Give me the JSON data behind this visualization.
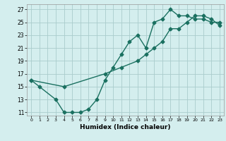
{
  "xlabel": "Humidex (Indice chaleur)",
  "background_color": "#d4eeee",
  "grid_color": "#aacccc",
  "line_color": "#1a7060",
  "xlim": [
    -0.5,
    23.5
  ],
  "ylim": [
    10.5,
    27.8
  ],
  "xticks": [
    0,
    1,
    2,
    3,
    4,
    5,
    6,
    7,
    8,
    9,
    10,
    11,
    12,
    13,
    14,
    15,
    16,
    17,
    18,
    19,
    20,
    21,
    22,
    23
  ],
  "yticks": [
    11,
    13,
    15,
    17,
    19,
    21,
    23,
    25,
    27
  ],
  "line1_x": [
    0,
    1,
    3,
    4,
    5,
    6,
    7,
    8,
    9,
    10,
    11,
    12,
    13,
    14,
    15,
    16,
    17,
    18,
    19,
    20,
    21,
    22,
    23
  ],
  "line1_y": [
    16,
    15,
    13,
    11,
    11,
    11,
    11.5,
    13,
    16,
    18,
    20,
    22,
    23,
    21,
    25,
    25.5,
    27,
    26,
    26,
    25.5,
    25.5,
    25,
    25
  ],
  "line2_x": [
    0,
    4,
    9,
    11,
    13,
    14,
    15,
    16,
    17,
    18,
    19,
    20,
    21,
    22,
    23
  ],
  "line2_y": [
    16,
    15,
    17,
    18,
    19,
    20,
    21,
    22,
    24,
    24,
    25,
    26,
    26,
    25.5,
    24.5
  ]
}
